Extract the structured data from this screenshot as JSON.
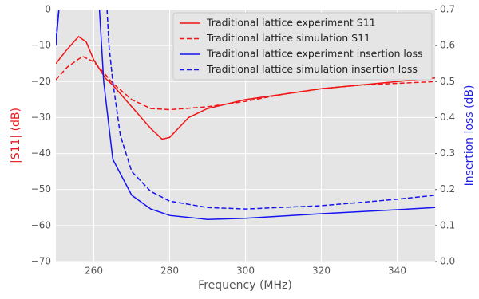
{
  "chart_data": {
    "type": "line",
    "xlabel": "Frequency (MHz)",
    "ylabel": "|S11| (dB)",
    "y2label": "Insertion loss (dB)",
    "ylabel_color": "#e8191e",
    "y2label_color": "#1f1fe0",
    "xlim": [
      250,
      350
    ],
    "ylim": [
      -70,
      0
    ],
    "y2lim": [
      0,
      0.7
    ],
    "xticks": [
      260,
      280,
      300,
      320,
      340
    ],
    "yticks": [
      {
        "value": -70,
        "label": "−70"
      },
      {
        "value": -60,
        "label": "−60"
      },
      {
        "value": -50,
        "label": "−50"
      },
      {
        "value": -40,
        "label": "−40"
      },
      {
        "value": -30,
        "label": "−30"
      },
      {
        "value": -20,
        "label": "−20"
      },
      {
        "value": -10,
        "label": "−10"
      },
      0
    ],
    "y2ticks": [
      {
        "value": 0,
        "label": "0.0"
      },
      0.1,
      0.2,
      0.3,
      0.4,
      0.5,
      0.6,
      0.7
    ],
    "grid": true,
    "legend": "upper right",
    "series": [
      {
        "name": "Traditional lattice experiment S11",
        "color": "#f01414",
        "dashed": false,
        "x": [
          250,
          253,
          256,
          258,
          260,
          263,
          265,
          270,
          275,
          278,
          280,
          285,
          290,
          300,
          310,
          320,
          330,
          340,
          350
        ],
        "values": [
          -15,
          -11,
          -7.5,
          -9,
          -14,
          -19,
          -21,
          -27,
          -33,
          -36,
          -35.5,
          -30,
          -27.5,
          -25,
          -23.5,
          -22,
          -21,
          -20,
          -19
        ]
      },
      {
        "name": "Traditional lattice simulation S11",
        "color": "#f01414",
        "dashed": true,
        "x": [
          250,
          253,
          257,
          260,
          263,
          265,
          270,
          275,
          280,
          290,
          300,
          310,
          320,
          330,
          340,
          350
        ],
        "values": [
          -19.5,
          -16,
          -13,
          -14.5,
          -18,
          -20.5,
          -25,
          -27.5,
          -27.8,
          -27,
          -25.5,
          -23.5,
          -22,
          -21,
          -20.5,
          -20
        ]
      },
      {
        "name": "Traditional lattice experiment insertion loss",
        "color": "#1414f0",
        "dashed": false,
        "axis": "y2",
        "x": [
          250,
          250.8,
          255,
          261.5,
          262.6,
          265,
          270,
          275,
          280,
          290,
          300,
          320,
          340,
          350
        ],
        "values": [
          0.6,
          0.7,
          null,
          0.7,
          0.5,
          0.284,
          0.184,
          0.146,
          0.128,
          0.117,
          0.12,
          0.133,
          0.144,
          0.15
        ]
      },
      {
        "name": "Traditional lattice simulation insertion loss",
        "color": "#1414f0",
        "dashed": true,
        "axis": "y2",
        "x": [
          250,
          250.8,
          255,
          263.5,
          264,
          265,
          267,
          270,
          275,
          280,
          290,
          300,
          320,
          340,
          350
        ],
        "values": [
          0.62,
          0.7,
          null,
          0.7,
          0.6,
          0.5,
          0.35,
          0.25,
          0.195,
          0.168,
          0.15,
          0.146,
          0.155,
          0.173,
          0.184
        ]
      }
    ]
  }
}
